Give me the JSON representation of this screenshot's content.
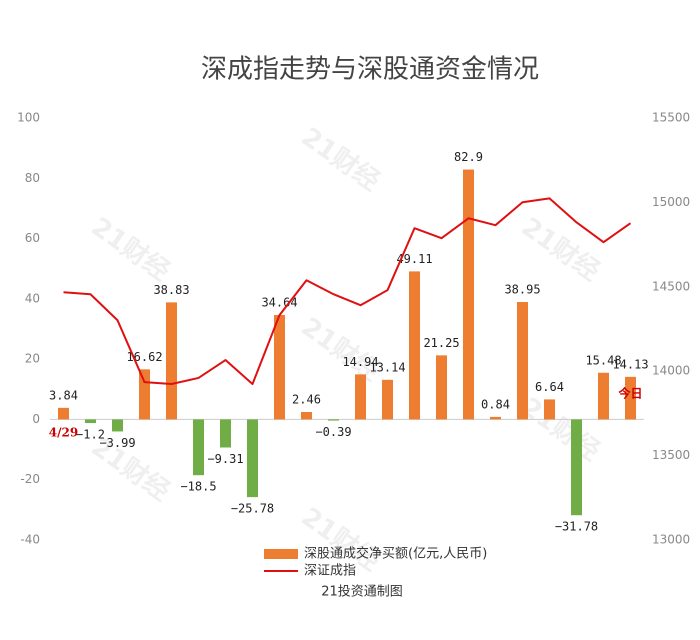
{
  "chart_data": {
    "type": "bar_line",
    "title": "深成指走势与深股通资金情况",
    "source": "21投资通制图",
    "watermark": "21财经",
    "categories": [
      "4/29",
      null,
      null,
      null,
      null,
      null,
      null,
      null,
      null,
      null,
      null,
      null,
      null,
      null,
      null,
      null,
      null,
      null,
      null,
      null,
      null,
      "今日"
    ],
    "series": [
      {
        "name": "深股通成交净买额(亿元,人民币)",
        "color": "#ed7d31",
        "negative_color": "#70ad47",
        "axis": "y",
        "values": [
          3.84,
          -1.2,
          -3.99,
          16.62,
          38.83,
          -18.5,
          -9.31,
          -25.78,
          34.64,
          2.46,
          -0.39,
          14.94,
          13.14,
          49.11,
          21.25,
          82.9,
          0.84,
          38.95,
          6.64,
          -31.78,
          15.48,
          14.13
        ],
        "value_labels": [
          "3.84",
          "−1.2",
          "−3.99",
          "16.62",
          "38.83",
          "−18.5",
          "−9.31",
          "−25.78",
          "34.64",
          "2.46",
          "−0.39",
          "14.94",
          "13.14",
          "49.11",
          "21.25",
          "82.9",
          "0.84",
          "38.95",
          "6.64",
          "−31.78",
          "15.48",
          "14.13"
        ]
      },
      {
        "name": "深证成指",
        "color": "#e01010",
        "axis": "y2",
        "values": [
          14468,
          14456,
          14302,
          13935,
          13924,
          13960,
          14066,
          13924,
          14332,
          14539,
          14456,
          14391,
          14480,
          14847,
          14788,
          14906,
          14865,
          15001,
          15024,
          14882,
          14764,
          14877
        ]
      }
    ],
    "ylim": [
      -40,
      100
    ],
    "yticks": [
      -40,
      -20,
      0,
      20,
      40,
      60,
      80,
      100
    ],
    "y2lim": [
      13000,
      15500
    ],
    "y2ticks": [
      13000,
      13500,
      14000,
      14500,
      15000,
      15500
    ],
    "grid": false,
    "legend": "bottom"
  }
}
